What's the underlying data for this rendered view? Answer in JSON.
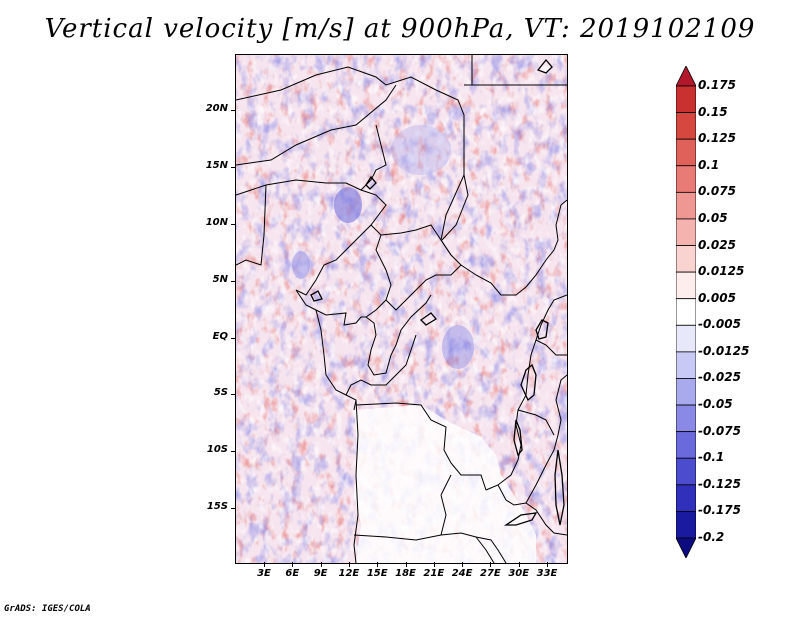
{
  "title": "Vertical velocity [m/s] at 900hPa, VT: 2019102109",
  "footer": "GrADS: IGES/COLA",
  "map": {
    "lat_labels": [
      "20N",
      "15N",
      "10N",
      "5N",
      "EQ",
      "5S",
      "10S",
      "15S"
    ],
    "lon_labels": [
      "3E",
      "6E",
      "9E",
      "12E",
      "15E",
      "18E",
      "21E",
      "24E",
      "27E",
      "30E",
      "33E"
    ]
  },
  "colorbar": {
    "labels": [
      "0.175",
      "0.15",
      "0.125",
      "0.1",
      "0.075",
      "0.05",
      "0.025",
      "0.0125",
      "0.005",
      "-0.005",
      "-0.0125",
      "-0.025",
      "-0.05",
      "-0.075",
      "-0.1",
      "-0.125",
      "-0.175",
      "-0.2"
    ],
    "colors": [
      "#b2182b",
      "#c8312f",
      "#d6483f",
      "#e0605a",
      "#e97b76",
      "#ef9792",
      "#f4b3ae",
      "#f9d3d0",
      "#fdeeed",
      "#ffffff",
      "#e8e8fb",
      "#c9c9f5",
      "#a9a9ee",
      "#8a8ae6",
      "#6a6adc",
      "#4c4ccf",
      "#3030bb",
      "#1a1aa0",
      "#0c0c80"
    ]
  }
}
